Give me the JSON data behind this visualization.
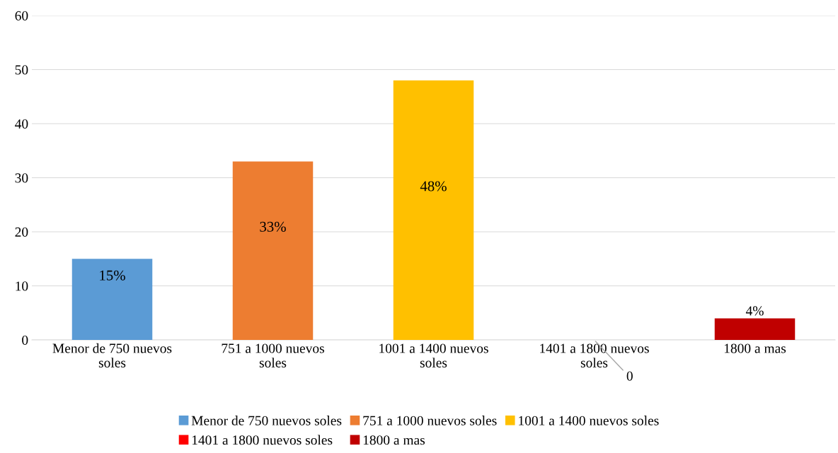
{
  "chart_data": {
    "type": "bar",
    "categories": [
      "Menor de 750 nuevos soles",
      "751 a 1000 nuevos soles",
      "1001 a 1400 nuevos soles",
      "1401 a 1800 nuevos soles",
      "1800 a mas"
    ],
    "series": [
      {
        "name": "Menor de 750 nuevos soles",
        "color": "#5b9bd5",
        "values": [
          15,
          null,
          null,
          null,
          null
        ],
        "value_labels": [
          "15%",
          null,
          null,
          null,
          null
        ]
      },
      {
        "name": "751 a 1000 nuevos soles",
        "color": "#ed7d31",
        "values": [
          null,
          33,
          null,
          null,
          null
        ],
        "value_labels": [
          null,
          "33%",
          null,
          null,
          null
        ]
      },
      {
        "name": "1001 a 1400 nuevos soles",
        "color": "#ffc000",
        "values": [
          null,
          null,
          48,
          null,
          null
        ],
        "value_labels": [
          null,
          null,
          "48%",
          null,
          null
        ]
      },
      {
        "name": "1401 a 1800 nuevos soles",
        "color": "#ff0000",
        "values": [
          null,
          null,
          null,
          0,
          null
        ],
        "value_labels": [
          null,
          null,
          null,
          "0",
          null
        ]
      },
      {
        "name": "1800 a mas",
        "color": "#c00000",
        "values": [
          null,
          null,
          null,
          null,
          4
        ],
        "value_labels": [
          null,
          null,
          null,
          null,
          "4%"
        ]
      }
    ],
    "ylim": [
      0,
      60
    ],
    "yticks": [
      0,
      10,
      20,
      30,
      40,
      50,
      60
    ],
    "grid": "y",
    "legend": "bottom"
  }
}
